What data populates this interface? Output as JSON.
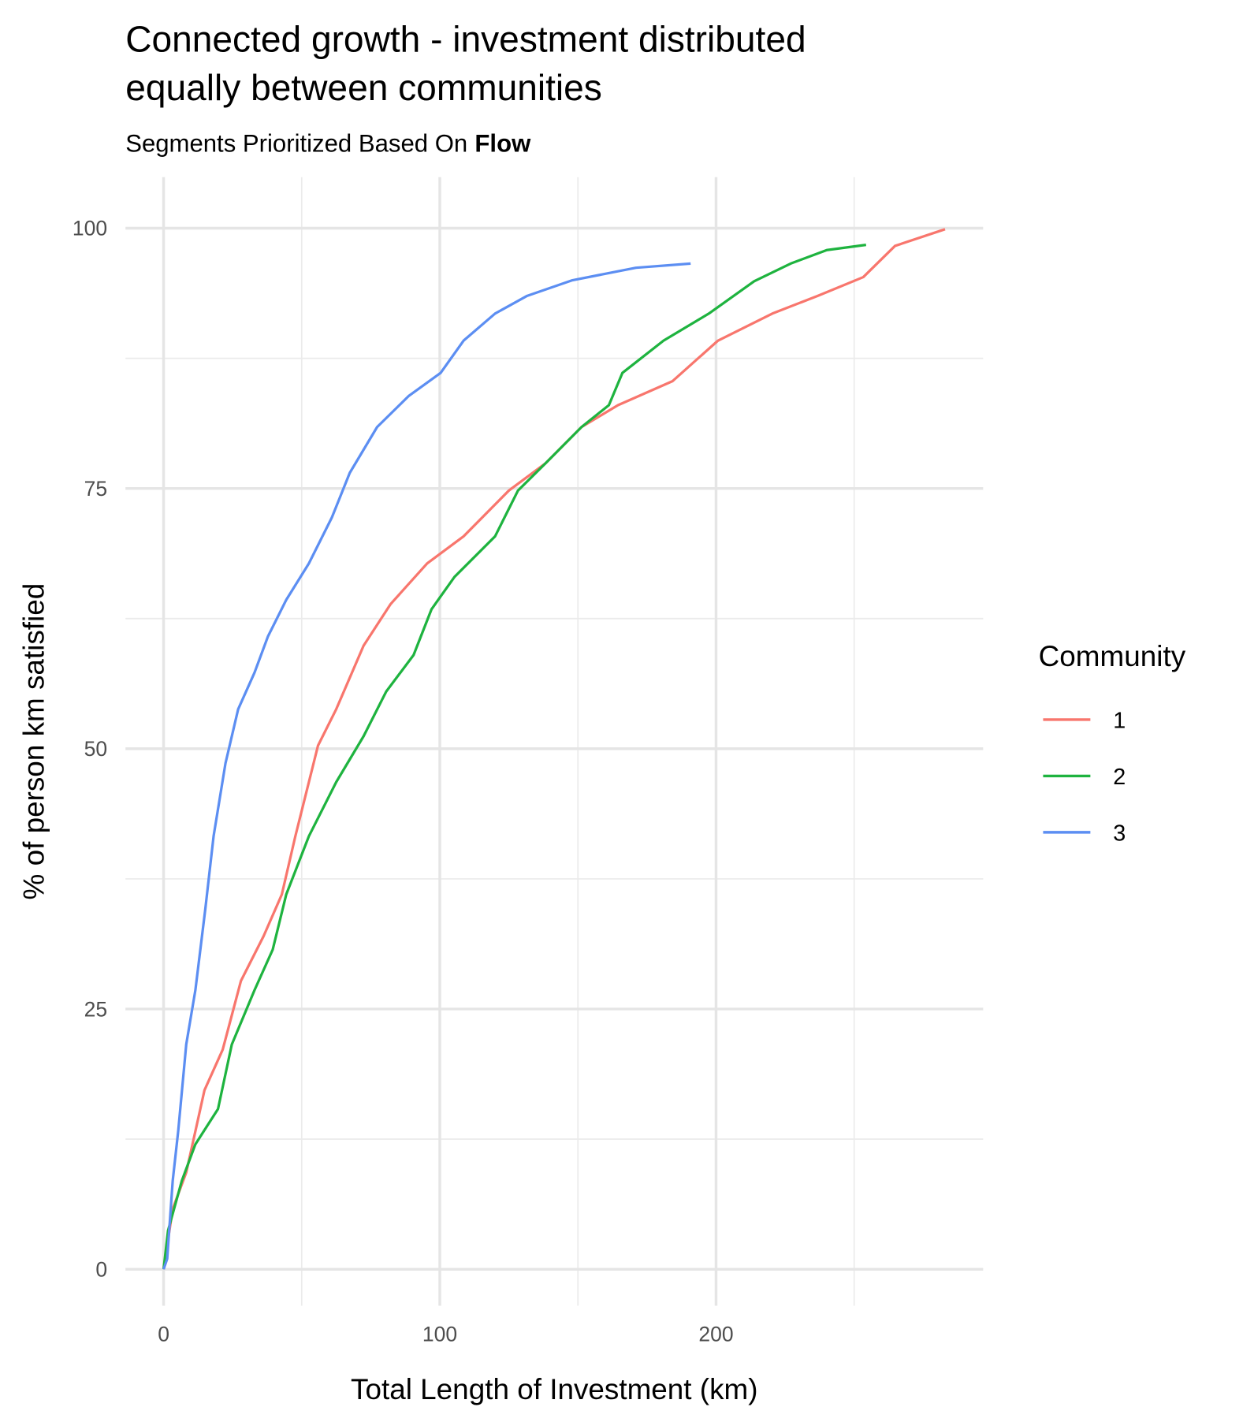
{
  "chart_data": {
    "type": "line",
    "title": [
      "Connected growth - investment distributed",
      "equally between communities"
    ],
    "subtitle": [
      "Segments Prioritized Based On",
      "Flow"
    ],
    "x_label": "Total Length of Investment (km)",
    "y_label": "% of person km satisfied",
    "legend_title": "Community",
    "legend_position": "right",
    "grid": true,
    "xlim": [
      -13.8,
      296.7
    ],
    "ylim": [
      -3.5,
      104.9
    ],
    "xticks": [
      0,
      100,
      200
    ],
    "yticks": [
      0,
      25,
      50,
      75,
      100
    ],
    "xminor": [
      50,
      150,
      250
    ],
    "yminor": [
      12.5,
      37.5,
      62.5,
      87.5
    ],
    "series": [
      {
        "name": "1",
        "color": "#f8766d",
        "x": [
          0,
          3.3,
          8.2,
          14.8,
          21.4,
          28,
          36.2,
          42.8,
          47.7,
          55.9,
          62.5,
          72.4,
          82.2,
          95.4,
          108.6,
          125,
          138.2,
          151.3,
          164.5,
          184.2,
          200.7,
          220.4,
          236.8,
          253.3,
          264.8,
          282.9
        ],
        "values": [
          0,
          5.8,
          9.3,
          17.2,
          21.1,
          27.7,
          32,
          36,
          41.6,
          50.3,
          53.8,
          59.9,
          63.9,
          67.8,
          70.4,
          74.8,
          77.4,
          80.9,
          83,
          85.3,
          89.2,
          91.8,
          93.5,
          95.3,
          98.3,
          99.9
        ]
      },
      {
        "name": "2",
        "color": "#1eb33f",
        "x": [
          0,
          1.6,
          6.6,
          11.5,
          19.7,
          24.7,
          32.9,
          39.5,
          44.4,
          52.6,
          62.5,
          72.4,
          80.6,
          90.5,
          97,
          105.3,
          120,
          128.3,
          138.2,
          151.3,
          161.2,
          166.1,
          181,
          197.4,
          213.8,
          227,
          240.1,
          254.3
        ],
        "values": [
          0,
          3.7,
          8.5,
          12,
          15.4,
          21.6,
          26.8,
          30.7,
          36,
          41.6,
          46.8,
          51.2,
          55.5,
          59,
          63.4,
          66.5,
          70.4,
          74.8,
          77.4,
          80.9,
          83,
          86.1,
          89.2,
          91.8,
          94.9,
          96.6,
          97.9,
          98.4
        ]
      },
      {
        "name": "3",
        "color": "#5c8ef2",
        "x": [
          0,
          1.3,
          3.3,
          5.3,
          8.2,
          11.5,
          15.1,
          18.1,
          22.4,
          27,
          32.9,
          37.8,
          44.4,
          52.6,
          60.9,
          67.4,
          77.3,
          88.8,
          100.3,
          108.6,
          120,
          131.6,
          148,
          171,
          190.8
        ],
        "values": [
          0,
          1,
          8.5,
          13.3,
          21.6,
          26.8,
          34.6,
          41.6,
          48.6,
          53.8,
          57.3,
          60.8,
          64.3,
          67.8,
          72.2,
          76.5,
          80.9,
          83.9,
          86.1,
          89.2,
          91.8,
          93.5,
          95,
          96.2,
          96.6
        ]
      }
    ]
  }
}
